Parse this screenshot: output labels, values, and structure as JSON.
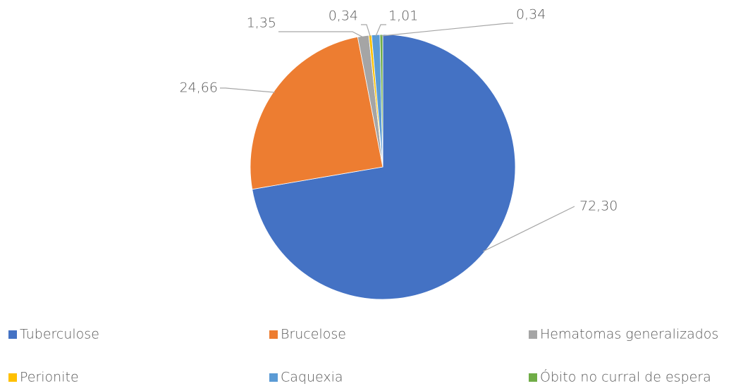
{
  "chart_data": {
    "type": "pie",
    "categories": [
      "Tuberculose",
      "Brucelose",
      "Hematomas generalizados",
      "Perionite",
      "Caquexia",
      "Óbito no curral de espera"
    ],
    "values": [
      72.3,
      24.66,
      1.35,
      0.34,
      1.01,
      0.34
    ],
    "value_labels": [
      "72,30",
      "24,66",
      "1,35",
      "0,34",
      "1,01",
      "0,34"
    ],
    "colors": [
      "#4472c4",
      "#ed7d31",
      "#a5a5a5",
      "#ffc000",
      "#5b9bd5",
      "#70ad47"
    ],
    "legend": "bottom"
  }
}
